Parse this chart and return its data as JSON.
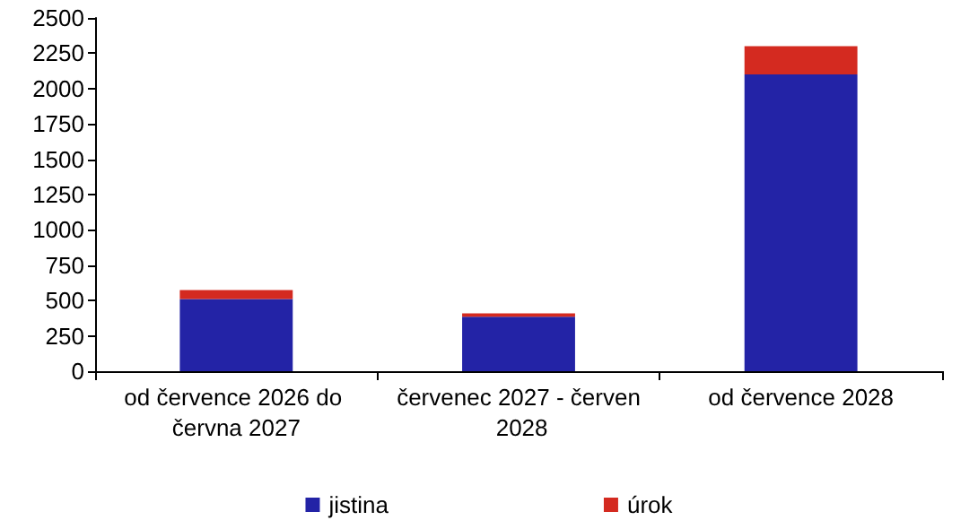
{
  "chart_data": {
    "type": "bar",
    "stacked": true,
    "categories": [
      "od července 2026 do června 2027",
      "červenec 2027 - červen 2028",
      "od července 2028"
    ],
    "series": [
      {
        "name": "jistina",
        "color": "#2323a6",
        "values": [
          510,
          385,
          2100
        ]
      },
      {
        "name": "úrok",
        "color": "#d42a20",
        "values": [
          65,
          25,
          200
        ]
      }
    ],
    "ylim": [
      0,
      2500
    ],
    "yticks": [
      0,
      250,
      500,
      750,
      1000,
      1250,
      1500,
      1750,
      2000,
      2250,
      2500
    ],
    "grid": false,
    "legend": "bottom"
  }
}
